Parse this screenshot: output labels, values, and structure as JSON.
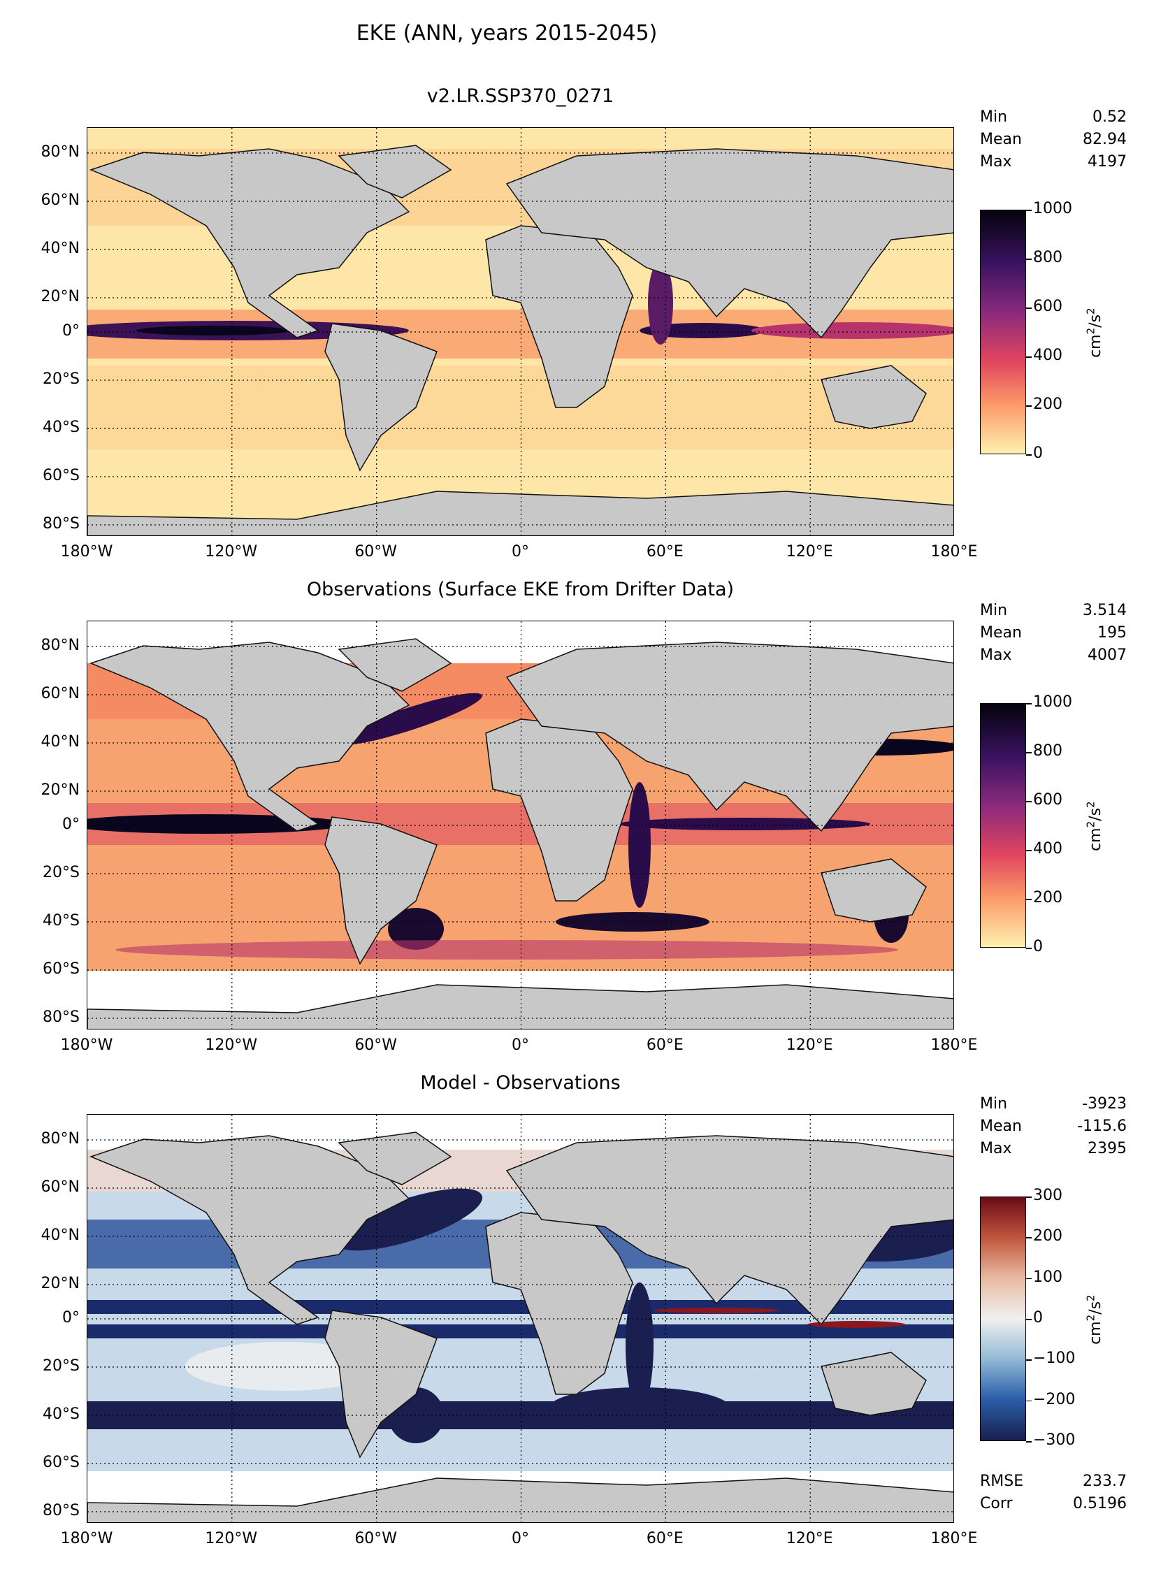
{
  "figure": {
    "title": "EKE (ANN, years 2015-2045)",
    "lat_labels": [
      "80°N",
      "60°N",
      "40°N",
      "20°N",
      "0°",
      "20°S",
      "40°S",
      "60°S",
      "80°S"
    ],
    "lon_labels": [
      "180°W",
      "120°W",
      "60°W",
      "0°",
      "60°E",
      "120°E",
      "180°E"
    ]
  },
  "panels": [
    {
      "title": "v2.LR.SSP370_0271",
      "stats": [
        {
          "label": "Min",
          "value": "0.52"
        },
        {
          "label": "Mean",
          "value": "82.94"
        },
        {
          "label": "Max",
          "value": "4197"
        }
      ],
      "colorbar": {
        "ticks": [
          "1000",
          "800",
          "600",
          "400",
          "200",
          "0"
        ],
        "unit": "cm²/s²",
        "cmap": "magma_r"
      }
    },
    {
      "title": "Observations (Surface EKE from Drifter Data)",
      "stats": [
        {
          "label": "Min",
          "value": "3.514"
        },
        {
          "label": "Mean",
          "value": "195"
        },
        {
          "label": "Max",
          "value": "4007"
        }
      ],
      "colorbar": {
        "ticks": [
          "1000",
          "800",
          "600",
          "400",
          "200",
          "0"
        ],
        "unit": "cm²/s²",
        "cmap": "magma_r"
      }
    },
    {
      "title": "Model - Observations",
      "stats": [
        {
          "label": "Min",
          "value": "-3923"
        },
        {
          "label": "Mean",
          "value": "-115.6"
        },
        {
          "label": "Max",
          "value": "2395"
        }
      ],
      "colorbar": {
        "ticks": [
          "300",
          "200",
          "100",
          "0",
          "−100",
          "−200",
          "−300"
        ],
        "unit": "cm²/s²",
        "cmap": "RdBu_r"
      },
      "extra_stats": [
        {
          "label": "RMSE",
          "value": "233.7"
        },
        {
          "label": "Corr",
          "value": "0.5196"
        }
      ]
    }
  ],
  "colors": {
    "land": "#c8c8c8",
    "magma_low": "#fdf0b0",
    "magma_high": "#05030e",
    "diff_low": "#1a1f4f",
    "diff_mid": "#f0f0f0",
    "diff_high": "#6a0a14"
  }
}
